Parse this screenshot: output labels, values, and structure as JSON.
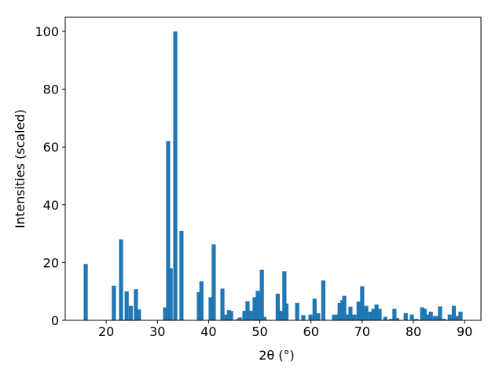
{
  "chart_data": {
    "type": "bar",
    "xlabel": "2θ (°)",
    "ylabel": "Intensities (scaled)",
    "color": "#1f77b4",
    "x": [
      16.0,
      21.5,
      22.9,
      24.0,
      24.8,
      25.8,
      26.4,
      31.5,
      32.1,
      32.6,
      33.5,
      34.7,
      38.1,
      38.6,
      40.4,
      41.0,
      42.7,
      43.5,
      44.0,
      44.4,
      45.8,
      46.1,
      47.0,
      47.6,
      48.2,
      49.0,
      49.6,
      50.4,
      50.9,
      53.5,
      54.1,
      54.8,
      55.2,
      57.3,
      58.5,
      59.9,
      60.7,
      61.4,
      62.4,
      64.5,
      65.3,
      65.6,
      66.1,
      66.5,
      67.0,
      67.7,
      68.5,
      69.3,
      70.0,
      70.8,
      71.6,
      72.2,
      72.8,
      73.4,
      74.5,
      75.6,
      76.3,
      76.8,
      78.5,
      79.7,
      80.6,
      81.7,
      82.2,
      82.8,
      83.4,
      84.2,
      84.6,
      85.2,
      86.0,
      87.1,
      87.9,
      88.6,
      89.2
    ],
    "values": [
      19.5,
      12,
      28,
      10,
      5,
      10.8,
      3.8,
      4.5,
      62,
      18,
      100,
      31,
      9.8,
      13.5,
      8,
      26.3,
      11,
      2,
      3.5,
      3.2,
      0.5,
      1,
      3.3,
      6.6,
      3.3,
      8,
      10.2,
      17.5,
      1.2,
      9.2,
      3.3,
      17,
      5.8,
      6,
      1.8,
      2,
      7.5,
      2.5,
      13.8,
      2,
      2,
      6,
      7,
      8.5,
      2,
      4.7,
      2,
      6.5,
      11.8,
      5,
      3,
      4,
      5.5,
      4,
      1.2,
      0.5,
      4,
      0.8,
      2.5,
      2,
      0.5,
      4.5,
      4,
      2,
      3,
      1.5,
      1.5,
      4.8,
      0.5,
      2,
      5,
      1.5,
      3
    ],
    "xlim": [
      12.0,
      93.2
    ],
    "ylim": [
      0,
      104.9
    ],
    "xticks": [
      20,
      30,
      40,
      50,
      60,
      70,
      80,
      90
    ],
    "yticks": [
      0,
      20,
      40,
      60,
      80,
      100
    ]
  }
}
